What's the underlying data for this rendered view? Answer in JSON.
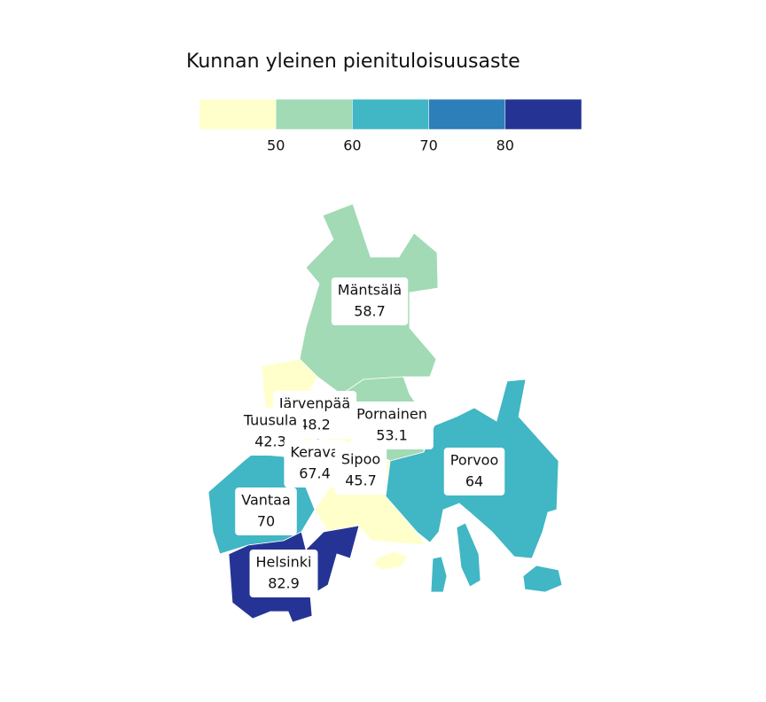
{
  "chart_data": {
    "type": "choropleth",
    "title": "Kunnan yleinen pienituloisuusaste",
    "colorlim": [
      40,
      90
    ],
    "colorticks": [
      50,
      60,
      70,
      80
    ],
    "colors": [
      "#ffffcc",
      "#a1dab4",
      "#41b6c4",
      "#2c7fb8",
      "#253494"
    ],
    "regions": [
      {
        "name": "Mäntsälä",
        "value": 58.7
      },
      {
        "name": "Pornainen",
        "value": 53.1
      },
      {
        "name": "Porvoo",
        "value": 64
      },
      {
        "name": "Järvenpää",
        "value": 48.2
      },
      {
        "name": "Tuusula",
        "value": 42.3
      },
      {
        "name": "Kerava",
        "value": 67.4
      },
      {
        "name": "Sipoo",
        "value": 45.7
      },
      {
        "name": "Vantaa",
        "value": 70
      },
      {
        "name": "Helsinki",
        "value": 82.9
      }
    ]
  }
}
